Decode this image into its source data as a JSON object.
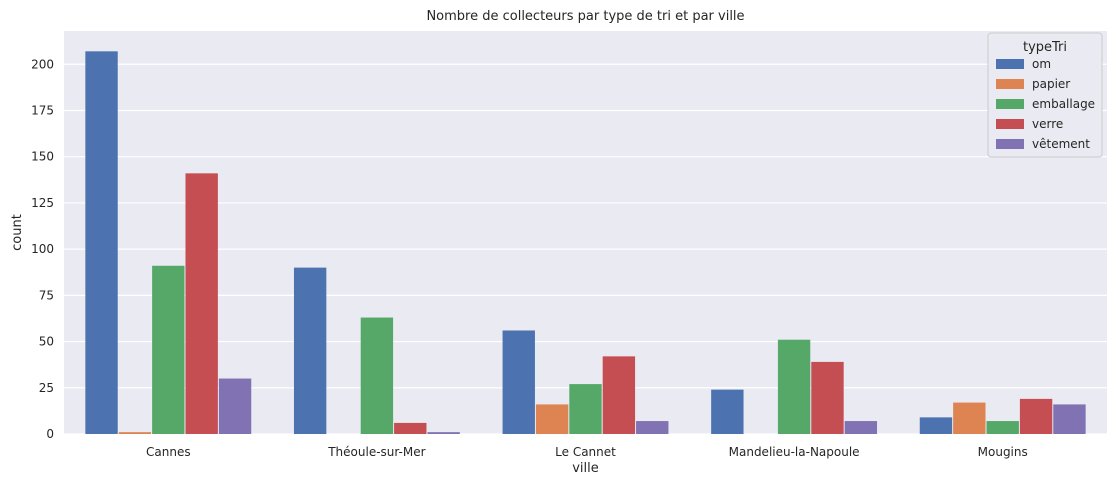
{
  "chart_data": {
    "type": "bar",
    "title": "Nombre de collecteurs par type de tri et par ville",
    "xlabel": "ville",
    "ylabel": "count",
    "ylim": [
      0,
      218
    ],
    "yticks": [
      0,
      25,
      50,
      75,
      100,
      125,
      150,
      175,
      200
    ],
    "grid": true,
    "legend_title": "typeTri",
    "legend_position": "top-right",
    "categories": [
      "Cannes",
      "Théoule-sur-Mer",
      "Le Cannet",
      "Mandelieu-la-Napoule",
      "Mougins"
    ],
    "series": [
      {
        "name": "om",
        "color": "#4c72b0",
        "values": [
          207,
          90,
          56,
          24,
          9
        ]
      },
      {
        "name": "papier",
        "color": "#dd8452",
        "values": [
          1,
          0,
          16,
          0,
          17
        ]
      },
      {
        "name": "emballage",
        "color": "#55a868",
        "values": [
          91,
          63,
          27,
          51,
          7
        ]
      },
      {
        "name": "verre",
        "color": "#c44e52",
        "values": [
          141,
          6,
          42,
          39,
          19
        ]
      },
      {
        "name": "vêtement",
        "color": "#8172b3",
        "values": [
          30,
          1,
          7,
          7,
          16
        ]
      }
    ]
  },
  "colors": {
    "plot_background": "#eaeaf2",
    "grid": "#ffffff",
    "text": "#262626"
  }
}
